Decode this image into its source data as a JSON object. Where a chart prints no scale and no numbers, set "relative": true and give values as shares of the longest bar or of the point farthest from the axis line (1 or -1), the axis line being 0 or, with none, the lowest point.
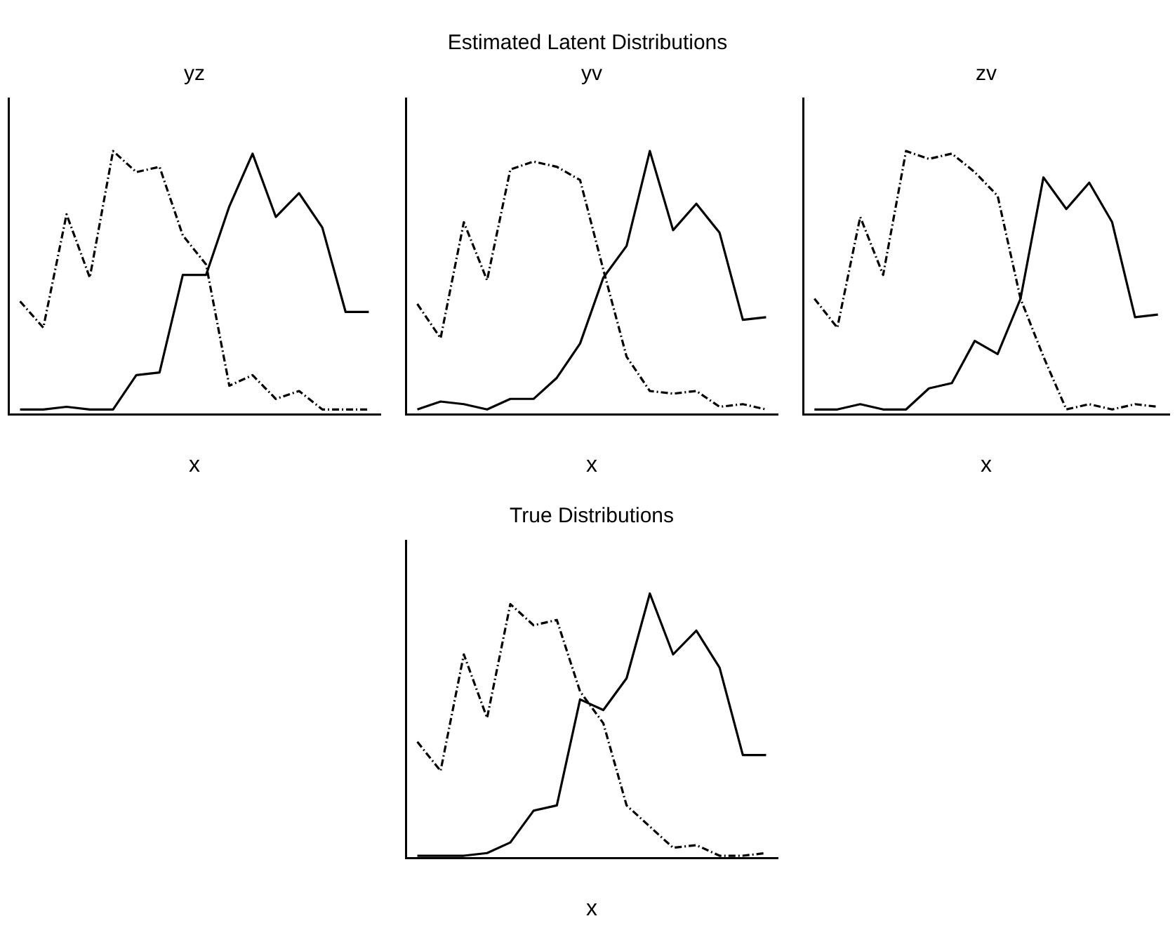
{
  "chart_data": [
    {
      "type": "line",
      "title": "yz",
      "xlabel": "x",
      "annotations": [
        "Estimated Latent Distributions"
      ],
      "relative": true,
      "grid": false,
      "legend": false,
      "marker": "none",
      "categories": [
        null,
        null,
        null,
        null,
        null,
        null,
        null,
        null,
        null,
        null,
        null,
        null,
        null,
        null,
        null,
        null
      ],
      "series": [
        {
          "color": "#000000",
          "line_style": "dashed",
          "values": [
            0.43,
            0.33,
            0.76,
            0.52,
            1,
            0.92,
            0.94,
            0.68,
            0.57,
            0.11,
            0.15,
            0.06,
            0.09,
            0.02,
            0.02,
            0.02
          ]
        },
        {
          "color": "#000000",
          "line_style": "solid",
          "values": [
            0.02,
            0.02,
            0.03,
            0.02,
            0.02,
            0.15,
            0.16,
            0.53,
            0.53,
            0.79,
            0.99,
            0.75,
            0.84,
            0.71,
            0.39,
            0.39
          ]
        }
      ]
    },
    {
      "type": "line",
      "title": "yv",
      "xlabel": "x",
      "relative": true,
      "grid": false,
      "legend": false,
      "marker": "none",
      "categories": [
        null,
        null,
        null,
        null,
        null,
        null,
        null,
        null,
        null,
        null,
        null,
        null,
        null,
        null,
        null,
        null
      ],
      "series": [
        {
          "color": "#000000",
          "line_style": "dashed",
          "values": [
            0.42,
            0.29,
            0.73,
            0.51,
            0.93,
            0.96,
            0.94,
            0.89,
            0.55,
            0.22,
            0.09,
            0.08,
            0.09,
            0.03,
            0.04,
            0.02
          ]
        },
        {
          "color": "#000000",
          "line_style": "solid",
          "values": [
            0.02,
            0.05,
            0.04,
            0.02,
            0.06,
            0.06,
            0.14,
            0.27,
            0.52,
            0.64,
            1,
            0.7,
            0.8,
            0.69,
            0.36,
            0.37
          ]
        }
      ]
    },
    {
      "type": "line",
      "title": "zv",
      "xlabel": "x",
      "relative": true,
      "grid": false,
      "legend": false,
      "marker": "none",
      "categories": [
        null,
        null,
        null,
        null,
        null,
        null,
        null,
        null,
        null,
        null,
        null,
        null,
        null,
        null,
        null,
        null
      ],
      "series": [
        {
          "color": "#000000",
          "line_style": "dashed",
          "values": [
            0.44,
            0.33,
            0.75,
            0.53,
            1,
            0.97,
            0.99,
            0.92,
            0.83,
            0.44,
            0.22,
            0.02,
            0.04,
            0.02,
            0.04,
            0.03
          ]
        },
        {
          "color": "#000000",
          "line_style": "solid",
          "values": [
            0.02,
            0.02,
            0.04,
            0.02,
            0.02,
            0.1,
            0.12,
            0.28,
            0.23,
            0.44,
            0.9,
            0.78,
            0.88,
            0.73,
            0.37,
            0.38
          ]
        }
      ]
    },
    {
      "type": "line",
      "title": "True Distributions",
      "xlabel": "x",
      "relative": true,
      "grid": false,
      "legend": false,
      "marker": "none",
      "categories": [
        null,
        null,
        null,
        null,
        null,
        null,
        null,
        null,
        null,
        null,
        null,
        null,
        null,
        null,
        null,
        null
      ],
      "series": [
        {
          "color": "#000000",
          "line_style": "dashed",
          "values": [
            0.44,
            0.33,
            0.77,
            0.53,
            0.96,
            0.88,
            0.9,
            0.63,
            0.51,
            0.2,
            0.12,
            0.04,
            0.05,
            0.01,
            0.01,
            0.02
          ]
        },
        {
          "color": "#000000",
          "line_style": "solid",
          "values": [
            0.01,
            0.01,
            0.01,
            0.02,
            0.06,
            0.18,
            0.2,
            0.6,
            0.56,
            0.68,
            1,
            0.77,
            0.86,
            0.72,
            0.39,
            0.39
          ]
        }
      ]
    }
  ]
}
